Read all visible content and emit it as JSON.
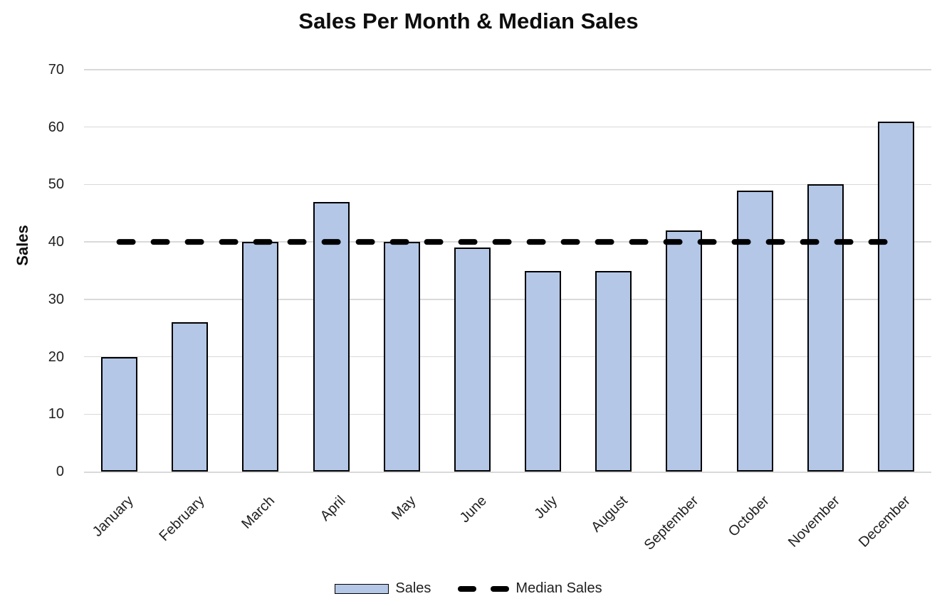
{
  "chart_data": {
    "type": "bar",
    "title": "Sales Per Month & Median Sales",
    "categories": [
      "January",
      "February",
      "March",
      "April",
      "May",
      "June",
      "July",
      "August",
      "September",
      "October",
      "November",
      "December"
    ],
    "series": [
      {
        "name": "Sales",
        "type": "bar",
        "values": [
          20,
          26,
          40,
          47,
          40,
          39,
          35,
          35,
          42,
          49,
          50,
          61
        ],
        "fill": "#B4C7E7",
        "border": "#000000"
      },
      {
        "name": "Median Sales",
        "type": "line",
        "style": "dashed",
        "values": [
          40,
          40,
          40,
          40,
          40,
          40,
          40,
          40,
          40,
          40,
          40,
          40
        ],
        "color": "#000000"
      }
    ],
    "xlabel": "",
    "ylabel": "Sales",
    "ylim": [
      0,
      70
    ],
    "yticks": [
      0,
      10,
      20,
      30,
      40,
      50,
      60,
      70
    ],
    "grid": true,
    "gridline_color": "#D9D9D9",
    "legend_position": "bottom"
  }
}
